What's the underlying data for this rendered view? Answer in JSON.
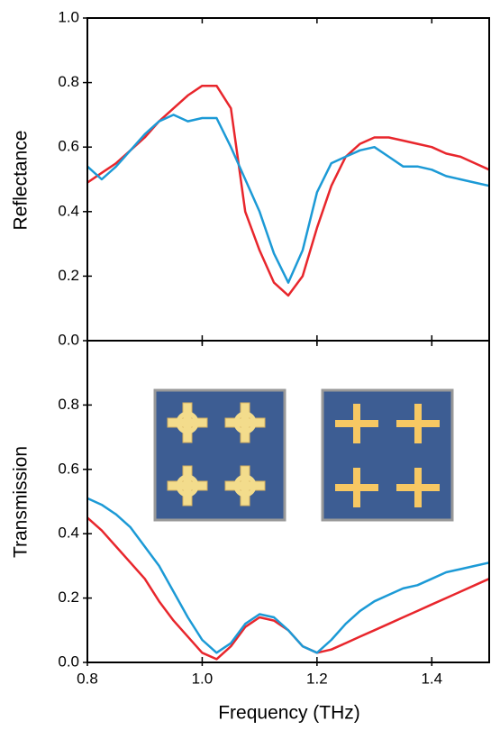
{
  "chart_data": [
    {
      "type": "line",
      "ylabel": "Reflectance",
      "x": [
        0.8,
        0.825,
        0.85,
        0.875,
        0.9,
        0.925,
        0.95,
        0.975,
        1.0,
        1.025,
        1.05,
        1.075,
        1.1,
        1.125,
        1.15,
        1.175,
        1.2,
        1.225,
        1.25,
        1.275,
        1.3,
        1.325,
        1.35,
        1.375,
        1.4,
        1.425,
        1.45,
        1.475,
        1.5
      ],
      "series": [
        {
          "color": "#e8262c",
          "values": [
            0.49,
            0.52,
            0.55,
            0.59,
            0.63,
            0.68,
            0.72,
            0.76,
            0.79,
            0.79,
            0.72,
            0.4,
            0.28,
            0.18,
            0.14,
            0.2,
            0.35,
            0.48,
            0.57,
            0.61,
            0.63,
            0.63,
            0.62,
            0.61,
            0.6,
            0.58,
            0.57,
            0.55,
            0.53
          ]
        },
        {
          "color": "#1c9ad6",
          "values": [
            0.54,
            0.5,
            0.54,
            0.59,
            0.64,
            0.68,
            0.7,
            0.68,
            0.69,
            0.69,
            0.6,
            0.5,
            0.4,
            0.27,
            0.18,
            0.28,
            0.46,
            0.55,
            0.57,
            0.59,
            0.6,
            0.57,
            0.54,
            0.54,
            0.53,
            0.51,
            0.5,
            0.49,
            0.48
          ]
        }
      ],
      "xlim": [
        0.8,
        1.5
      ],
      "ylim": [
        0,
        1
      ],
      "yticks": [
        {
          "value": 0,
          "label": "0.0"
        },
        0.2,
        0.4,
        0.6,
        0.8,
        {
          "value": 1,
          "label": "1.0"
        }
      ]
    },
    {
      "type": "line",
      "ylabel": "Transmission",
      "xlabel": "Frequency (THz)",
      "x": [
        0.8,
        0.825,
        0.85,
        0.875,
        0.9,
        0.925,
        0.95,
        0.975,
        1.0,
        1.025,
        1.05,
        1.075,
        1.1,
        1.125,
        1.15,
        1.175,
        1.2,
        1.225,
        1.25,
        1.275,
        1.3,
        1.325,
        1.35,
        1.375,
        1.4,
        1.425,
        1.45,
        1.475,
        1.5
      ],
      "series": [
        {
          "color": "#e8262c",
          "values": [
            0.45,
            0.41,
            0.36,
            0.31,
            0.26,
            0.19,
            0.13,
            0.08,
            0.03,
            0.01,
            0.05,
            0.11,
            0.14,
            0.13,
            0.1,
            0.05,
            0.03,
            0.04,
            0.06,
            0.08,
            0.1,
            0.12,
            0.14,
            0.16,
            0.18,
            0.2,
            0.22,
            0.24,
            0.26
          ]
        },
        {
          "color": "#1c9ad6",
          "values": [
            0.51,
            0.49,
            0.46,
            0.42,
            0.36,
            0.3,
            0.22,
            0.14,
            0.07,
            0.03,
            0.06,
            0.12,
            0.15,
            0.14,
            0.1,
            0.05,
            0.03,
            0.07,
            0.12,
            0.16,
            0.19,
            0.21,
            0.23,
            0.24,
            0.26,
            0.28,
            0.29,
            0.3,
            0.31
          ]
        }
      ],
      "xlim": [
        0.8,
        1.5
      ],
      "ylim": [
        0,
        1
      ],
      "xticks": [
        0.8,
        {
          "value": 1,
          "label": "1.0"
        },
        1.2,
        1.4
      ],
      "yticks": [
        {
          "value": 0,
          "label": "0.0"
        },
        0.2,
        0.4,
        0.6,
        0.8
      ]
    }
  ]
}
